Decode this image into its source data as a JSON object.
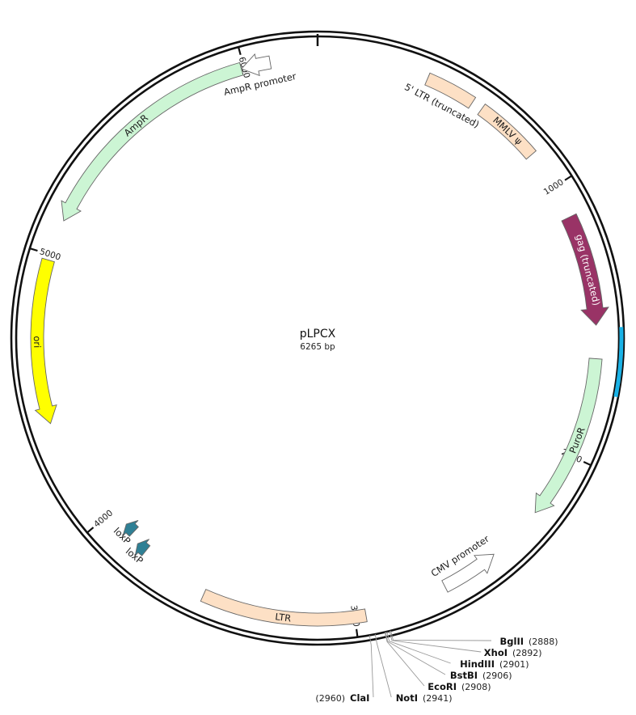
{
  "plasmid": {
    "name": "pLPCX",
    "length_label": "6265 bp",
    "length_bp": 6265
  },
  "ticks": [
    {
      "bp": 1000,
      "label": "1000"
    },
    {
      "bp": 2000,
      "label": "2000"
    },
    {
      "bp": 3000,
      "label": "3000"
    },
    {
      "bp": 4000,
      "label": "4000"
    },
    {
      "bp": 5000,
      "label": "5000"
    },
    {
      "bp": 6000,
      "label": "6000"
    }
  ],
  "features": [
    {
      "id": "ltr5",
      "name": "5' LTR (truncated)",
      "start": 400,
      "end": 580,
      "direction": "none",
      "color": "#fde0c5"
    },
    {
      "id": "psi",
      "name": "MMLV ψ",
      "start": 620,
      "end": 860,
      "direction": "none",
      "color": "#fde0c5"
    },
    {
      "id": "gag",
      "name": "gag (truncated)",
      "start": 1120,
      "end": 1520,
      "direction": "cw",
      "color": "#993366"
    },
    {
      "id": "puror",
      "name": "PuroR",
      "start": 1640,
      "end": 2240,
      "direction": "cw",
      "color": "#ccf5d4"
    },
    {
      "id": "cmv",
      "name": "CMV promoter",
      "start": 2450,
      "end": 2660,
      "direction": "ccw",
      "color": "#ffffff"
    },
    {
      "id": "ltr3",
      "name": "LTR",
      "start": 2960,
      "end": 3550,
      "direction": "none",
      "color": "#fde0c5"
    },
    {
      "id": "loxp1",
      "name": "loxP",
      "start": 3810,
      "end": 3850,
      "direction": "cw",
      "color": "#2f8095"
    },
    {
      "id": "loxp2",
      "name": "loxP",
      "start": 3890,
      "end": 3930,
      "direction": "cw",
      "color": "#2f8095"
    },
    {
      "id": "ori",
      "name": "ori",
      "start": 4390,
      "end": 4980,
      "direction": "ccw",
      "color": "#ffff00"
    },
    {
      "id": "ampr",
      "name": "AmpR",
      "start": 5130,
      "end": 5990,
      "direction": "ccw",
      "color": "#ccf5d4"
    },
    {
      "id": "amprprom",
      "name": "AmpR promoter",
      "start": 5990,
      "end": 6095,
      "direction": "ccw",
      "color": "#ffffff"
    }
  ],
  "backbone_highlight": {
    "start": 1530,
    "end": 1760,
    "color": "#1ab2e6"
  },
  "restriction_sites": [
    {
      "name": "BglII",
      "position": "(2888)"
    },
    {
      "name": "XhoI",
      "position": "(2892)"
    },
    {
      "name": "HindIII",
      "position": "(2901)"
    },
    {
      "name": "BstBI",
      "position": "(2906)"
    },
    {
      "name": "EcoRI",
      "position": "(2908)"
    },
    {
      "name": "NotI",
      "position": "(2941)"
    },
    {
      "name": "ClaI",
      "position": "(2960)"
    }
  ]
}
